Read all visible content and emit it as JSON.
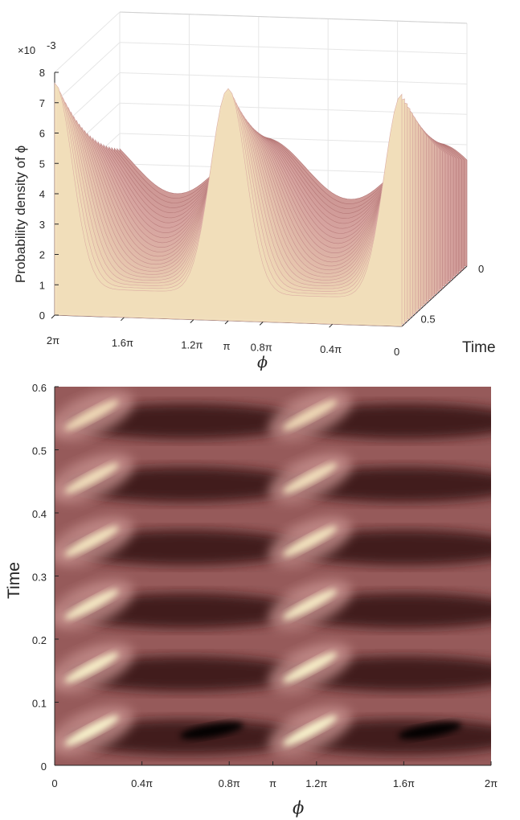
{
  "chart_data": [
    {
      "type": "surface",
      "zlabel": "Probability density of ϕ",
      "xlabel": "ϕ",
      "ylabel": "Time",
      "z_exponent": "×10-3",
      "zlim": [
        0,
        8
      ],
      "z_ticks": [
        "0",
        "1",
        "2",
        "3",
        "4",
        "5",
        "6",
        "7",
        "8"
      ],
      "phi_ticks": [
        "2π",
        "1.6π",
        "1.2π",
        "π",
        "0.8π",
        "0.4π"
      ],
      "time_ticks": [
        "0",
        "0.5"
      ],
      "extra_tick": "0",
      "colormap": [
        "#2a0e0e",
        "#6e3a3a",
        "#b07070",
        "#d7a4a0",
        "#f1dcb8",
        "#fbf7cf"
      ],
      "peaks": [
        {
          "phi_pi": 1.0,
          "time": 0.0,
          "density_e3": 8.0
        },
        {
          "phi_pi": 0.0,
          "time": 0.0,
          "density_e3": 8.0
        },
        {
          "phi_pi": 1.9,
          "time": 0.6,
          "density_e3": 4.3
        }
      ],
      "baseline_density_e3": 0.9
    },
    {
      "type": "heatmap",
      "xlabel": "ϕ",
      "ylabel": "Time",
      "xlim": [
        0,
        6.2832
      ],
      "ylim": [
        0,
        0.6
      ],
      "x_ticks": [
        "0",
        "0.4π",
        "0.8π",
        "π",
        "1.2π",
        "1.6π",
        "2π"
      ],
      "y_ticks": [
        "0",
        "0.1",
        "0.2",
        "0.3",
        "0.4",
        "0.5",
        "0.6"
      ],
      "period_time": 0.1,
      "bright_bands_phi_pi": [
        0.05,
        1.05
      ],
      "dark_minima": [
        {
          "phi_pi": 0.72,
          "time": 0.055
        },
        {
          "phi_pi": 1.72,
          "time": 0.055
        }
      ]
    }
  ]
}
